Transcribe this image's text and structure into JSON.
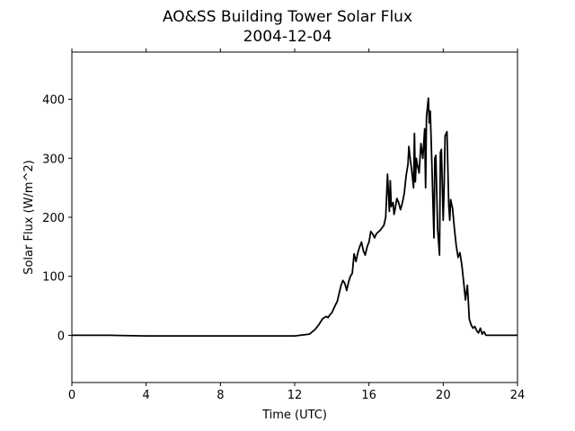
{
  "chart_data": {
    "type": "line",
    "title": "AO&SS Building Tower Solar Flux",
    "subtitle": "2004-12-04",
    "xlabel": "Time (UTC)",
    "ylabel": "Solar Flux (W/m^2)",
    "xlim": [
      0,
      24
    ],
    "ylim": [
      -80,
      480
    ],
    "xticks": [
      0,
      4,
      8,
      12,
      16,
      20,
      24
    ],
    "yticks": [
      0,
      100,
      200,
      300,
      400
    ],
    "grid": false,
    "legend": "none",
    "series": [
      {
        "color": "#000000",
        "x": [
          0,
          2,
          4,
          6,
          8,
          10,
          12,
          12.8,
          13.1,
          13.3,
          13.5,
          13.7,
          13.8,
          13.9,
          14.0,
          14.1,
          14.2,
          14.3,
          14.4,
          14.5,
          14.6,
          14.7,
          14.8,
          14.9,
          15.0,
          15.1,
          15.2,
          15.3,
          15.4,
          15.5,
          15.6,
          15.7,
          15.8,
          15.9,
          16.0,
          16.1,
          16.2,
          16.3,
          16.4,
          16.5,
          16.6,
          16.7,
          16.8,
          16.9,
          17.0,
          17.1,
          17.15,
          17.2,
          17.3,
          17.35,
          17.4,
          17.5,
          17.6,
          17.7,
          17.8,
          17.9,
          18.0,
          18.1,
          18.15,
          18.2,
          18.3,
          18.4,
          18.45,
          18.5,
          18.55,
          18.6,
          18.7,
          18.8,
          18.9,
          19.0,
          19.05,
          19.1,
          19.2,
          19.25,
          19.3,
          19.4,
          19.5,
          19.55,
          19.6,
          19.7,
          19.8,
          19.85,
          19.9,
          20.0,
          20.05,
          20.1,
          20.2,
          20.3,
          20.35,
          20.4,
          20.5,
          20.6,
          20.7,
          20.8,
          20.9,
          21.0,
          21.1,
          21.2,
          21.3,
          21.35,
          21.4,
          21.5,
          21.6,
          21.7,
          21.8,
          21.9,
          22.0,
          22.1,
          22.2,
          22.3,
          22.5,
          23.0,
          24.0
        ],
        "y": [
          0,
          0,
          -1,
          -1,
          -1,
          -1,
          -1,
          2,
          10,
          18,
          28,
          32,
          30,
          35,
          38,
          45,
          52,
          58,
          72,
          85,
          93,
          88,
          76,
          90,
          100,
          105,
          138,
          125,
          140,
          150,
          158,
          143,
          136,
          150,
          158,
          176,
          172,
          165,
          172,
          175,
          178,
          182,
          186,
          200,
          273,
          210,
          262,
          218,
          225,
          205,
          212,
          232,
          225,
          213,
          225,
          240,
          270,
          290,
          320,
          305,
          280,
          250,
          342,
          260,
          300,
          290,
          275,
          325,
          300,
          350,
          250,
          370,
          402,
          360,
          380,
          280,
          165,
          300,
          305,
          180,
          136,
          310,
          315,
          195,
          255,
          338,
          345,
          220,
          195,
          230,
          215,
          182,
          152,
          132,
          140,
          120,
          90,
          60,
          85,
          60,
          28,
          18,
          12,
          15,
          8,
          4,
          12,
          2,
          6,
          0,
          0,
          0,
          0
        ]
      }
    ]
  }
}
